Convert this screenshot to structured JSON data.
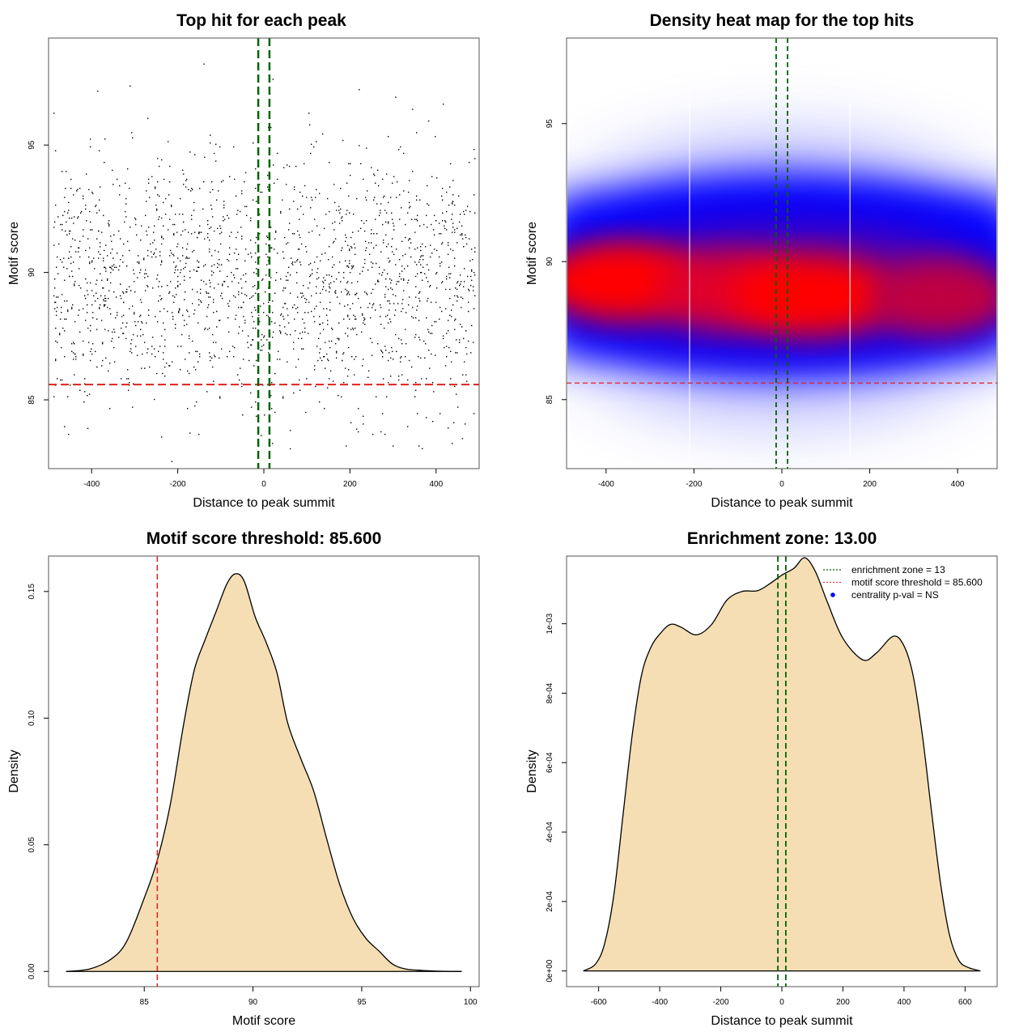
{
  "chart_data": [
    {
      "type": "scatter",
      "title": "Top hit for each peak",
      "xlabel": "Distance to peak summit",
      "ylabel": "Motif score",
      "xlim": [
        -500,
        500
      ],
      "ylim": [
        82.3,
        99.2
      ],
      "xticks": [
        -400,
        -200,
        0,
        200,
        400
      ],
      "yticks": [
        85,
        90,
        95
      ],
      "threshold_hline": {
        "value": 85.6,
        "color": "#e02020",
        "style": "dashed"
      },
      "enrichment_vlines": {
        "values": [
          -13,
          13
        ],
        "color": "#006400",
        "style": "dashed"
      },
      "points_description": "~2000 points roughly uniform in distance (-490..490), motif score concentrated 86-93 with tails 82.6-98.2",
      "notable_points": [
        {
          "x": -140,
          "y": 98.2
        },
        {
          "x": 220,
          "y": 97.2
        },
        {
          "x": 305,
          "y": 96.9
        },
        {
          "x": 20,
          "y": 97.6
        },
        {
          "x": -215,
          "y": 82.6
        },
        {
          "x": 60,
          "y": 83.1
        },
        {
          "x": 460,
          "y": 83.5
        },
        {
          "x": -410,
          "y": 83.9
        }
      ],
      "grid": false
    },
    {
      "type": "heatmap",
      "title": "Density heat map for the top hits",
      "xlabel": "Distance to peak summit",
      "ylabel": "Motif score",
      "xlim": [
        -490,
        490
      ],
      "ylim": [
        82.5,
        98.1
      ],
      "xticks": [
        -400,
        -200,
        0,
        200,
        400
      ],
      "yticks": [
        85,
        90,
        95
      ],
      "colormap": [
        "#ffffff",
        "#0000ff",
        "#ff0000"
      ],
      "density_peaks": [
        {
          "x": -370,
          "y": 89.3,
          "intensity": 0.95
        },
        {
          "x": -120,
          "y": 89.0,
          "intensity": 0.8
        },
        {
          "x": 70,
          "y": 88.8,
          "intensity": 1.0
        },
        {
          "x": 360,
          "y": 88.7,
          "intensity": 0.75
        }
      ],
      "white_vlines": [
        -210,
        155
      ],
      "threshold_hline": {
        "value": 85.6,
        "color": "#e02020",
        "style": "dashed"
      },
      "enrichment_vlines": {
        "values": [
          -13,
          13
        ],
        "color": "#006400",
        "style": "dashed"
      }
    },
    {
      "type": "area",
      "title": "Motif score threshold: 85.600",
      "xlabel": "Motif score",
      "ylabel": "Density",
      "xlim": [
        80.6,
        100.4
      ],
      "ylim": [
        -0.006,
        0.164
      ],
      "xticks": [
        85,
        90,
        95,
        100
      ],
      "yticks": [
        0.0,
        0.05,
        0.1,
        0.15
      ],
      "ytick_labels": [
        "0.00",
        "0.05",
        "0.10",
        "0.15"
      ],
      "fill_color": "#f5deb3",
      "x": [
        81.4,
        82.5,
        83.5,
        84.2,
        85.0,
        85.6,
        86.2,
        86.8,
        87.3,
        87.8,
        88.3,
        88.8,
        89.2,
        89.6,
        90.1,
        90.6,
        91.1,
        91.6,
        92.2,
        92.8,
        93.4,
        94.0,
        94.6,
        95.2,
        95.8,
        96.4,
        97.0,
        97.8,
        98.6,
        99.6
      ],
      "y": [
        0.0,
        0.001,
        0.005,
        0.012,
        0.029,
        0.044,
        0.066,
        0.097,
        0.119,
        0.131,
        0.142,
        0.153,
        0.157,
        0.154,
        0.14,
        0.13,
        0.118,
        0.098,
        0.084,
        0.071,
        0.052,
        0.034,
        0.021,
        0.013,
        0.008,
        0.003,
        0.001,
        0.0004,
        0.0001,
        0.0
      ],
      "threshold_vline": {
        "value": 85.6,
        "color": "#e02020",
        "style": "dashed"
      }
    },
    {
      "type": "area",
      "title": "Enrichment zone: 13.00",
      "xlabel": "Distance to peak summit",
      "ylabel": "Density",
      "xlim": [
        -705,
        705
      ],
      "ylim": [
        -4.52e-05,
        0.001195
      ],
      "xticks": [
        -600,
        -400,
        -200,
        0,
        200,
        400,
        600
      ],
      "yticks": [
        0,
        0.0002,
        0.0004,
        0.0006,
        0.0008,
        0.001
      ],
      "ytick_labels": [
        "0e+00",
        "2e-04",
        "4e-04",
        "6e-04",
        "8e-04",
        "1e-03"
      ],
      "fill_color": "#f5deb3",
      "x": [
        -650,
        -610,
        -580,
        -550,
        -520,
        -490,
        -460,
        -430,
        -400,
        -365,
        -330,
        -280,
        -230,
        -180,
        -130,
        -80,
        -40,
        0,
        40,
        75,
        110,
        150,
        200,
        265,
        310,
        365,
        400,
        430,
        460,
        490,
        520,
        550,
        580,
        610,
        650
      ],
      "y": [
        0.0,
        2e-05,
        8e-05,
        0.00022,
        0.00045,
        0.00068,
        0.00085,
        0.00093,
        0.00097,
        0.000998,
        0.00099,
        0.000968,
        0.000998,
        0.001068,
        0.001093,
        0.001095,
        0.001115,
        0.00114,
        0.00116,
        0.00119,
        0.00115,
        0.00106,
        0.000958,
        0.000896,
        0.000916,
        0.000964,
        0.000936,
        0.00085,
        0.00068,
        0.00046,
        0.00025,
        0.0001,
        3e-05,
        1e-05,
        0.0
      ],
      "enrichment_vlines": {
        "values": [
          -13,
          13
        ],
        "color": "#006400",
        "style": "dashed"
      },
      "legend": {
        "placement": "top-right",
        "entries": [
          {
            "label": "enrichment zone = 13",
            "symbol": "dotted-line",
            "color": "#006400"
          },
          {
            "label": "motif score threshold = 85.600",
            "symbol": "dotted-line",
            "color": "#e04040"
          },
          {
            "label": "centrality p-val = NS",
            "symbol": "dot",
            "color": "#0000ff"
          }
        ]
      }
    }
  ]
}
